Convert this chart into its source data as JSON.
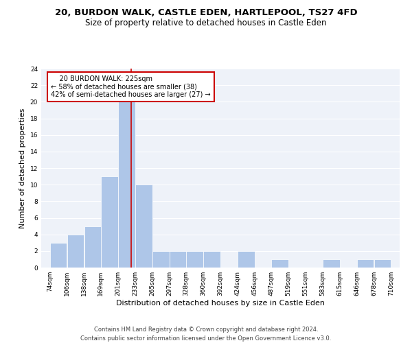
{
  "title1": "20, BURDON WALK, CASTLE EDEN, HARTLEPOOL, TS27 4FD",
  "title2": "Size of property relative to detached houses in Castle Eden",
  "xlabel": "Distribution of detached houses by size in Castle Eden",
  "ylabel": "Number of detached properties",
  "footnote1": "Contains HM Land Registry data © Crown copyright and database right 2024.",
  "footnote2": "Contains public sector information licensed under the Open Government Licence v3.0.",
  "annotation_line1": "  20 BURDON WALK: 225sqm  ",
  "annotation_line2": "← 58% of detached houses are smaller (38)",
  "annotation_line3": "42% of semi-detached houses are larger (27) →",
  "property_size": 225,
  "bin_edges": [
    74,
    106,
    138,
    169,
    201,
    233,
    265,
    297,
    328,
    360,
    392,
    424,
    456,
    487,
    519,
    551,
    583,
    615,
    646,
    678,
    710
  ],
  "bin_counts": [
    3,
    4,
    5,
    11,
    20,
    10,
    2,
    2,
    2,
    2,
    0,
    2,
    0,
    1,
    0,
    0,
    1,
    0,
    1,
    1
  ],
  "bar_color": "#aec6e8",
  "line_color": "#cc0000",
  "annotation_box_edgecolor": "#cc0000",
  "background_color": "#eef2f9",
  "grid_color": "#ffffff",
  "ylim": [
    0,
    24
  ],
  "yticks": [
    0,
    2,
    4,
    6,
    8,
    10,
    12,
    14,
    16,
    18,
    20,
    22,
    24
  ],
  "title_fontsize": 9.5,
  "subtitle_fontsize": 8.5,
  "ylabel_fontsize": 8,
  "xlabel_fontsize": 8,
  "tick_fontsize": 6.5,
  "annotation_fontsize": 7,
  "footnote_fontsize": 6
}
